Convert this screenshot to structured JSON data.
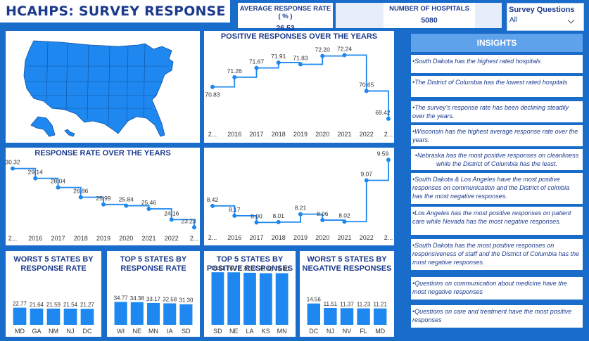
{
  "header": {
    "title": "HCAHPS: SURVEY RESPONSE",
    "kpi_response_rate": {
      "label": "AVERAGE RESPONSE RATE ( % )",
      "value": "26.53"
    },
    "kpi_hospitals": {
      "label": "NUMBER OF HOSPITALS",
      "value": "5080"
    },
    "slicer": {
      "label": "Survey Questions",
      "selected": "All"
    }
  },
  "colors": {
    "accent": "#1a6ccb",
    "bar": "#1e88f0",
    "title_text": "#1b3a8c"
  },
  "map": {
    "icon": "usa-map"
  },
  "insights": {
    "title": "INSIGHTS",
    "items": [
      "•South Dakota has the highest rated hospitals",
      "•The District of Columbia has the lowest rated hospitals",
      "•The survey's response rate has been declining steadily over the years.",
      "•Wisconsin has the highest average response rate over the years.",
      "•Nebraska has the most positive responses on cleanliness while the District of Columbia has the least.",
      "•South Dakota & Los Angeles have the most positive responses on communication and the District of colmbia has the most negative responses.",
      "•Los Angeles has the most positive responses on patient care while Nevada has the most negative responses.",
      "•South Dakota has the most positive responses on responsiveness of staff and the District of Columbia has the most negative responses.",
      "•Questions on communication about medicine have the most negative responses",
      "•Questions on care and treatment have the most positive responses"
    ]
  },
  "chart_data": [
    {
      "id": "positive",
      "type": "line",
      "title": "POSITIVE RESPONSES OVER THE YEARS",
      "categories": [
        "2...",
        "2016",
        "2017",
        "2018",
        "2019",
        "2020",
        "2021",
        "2022",
        "2..."
      ],
      "values": [
        70.83,
        71.26,
        71.67,
        71.91,
        71.83,
        72.2,
        72.24,
        70.65,
        69.42
      ],
      "labels": [
        "70.83",
        "71.26",
        "71.67",
        "71.91",
        "71.83",
        "72.20",
        "72.24",
        "70.65",
        "69.42"
      ],
      "ylim": [
        69.2,
        72.5
      ],
      "grid": false
    },
    {
      "id": "response",
      "type": "line",
      "title": "RESPONSE RATE OVER THE YEARS",
      "categories": [
        "2...",
        "2016",
        "2017",
        "2018",
        "2019",
        "2020",
        "2021",
        "2022",
        "2..."
      ],
      "values": [
        30.32,
        29.14,
        28.04,
        26.86,
        25.99,
        25.84,
        25.46,
        24.16,
        23.23
      ],
      "labels": [
        "30.32",
        "29.14",
        "28.04",
        "26.86",
        "25.99",
        "25.84",
        "25.46",
        "24.16",
        "23.23"
      ],
      "ylim": [
        22.5,
        30.8
      ],
      "grid": false
    },
    {
      "id": "negative",
      "type": "line",
      "title": "",
      "categories": [
        "2...",
        "2016",
        "2017",
        "2018",
        "2019",
        "2020",
        "2021",
        "2022",
        "2..."
      ],
      "values": [
        8.42,
        8.17,
        8.0,
        8.01,
        8.21,
        8.06,
        8.02,
        9.07,
        9.59
      ],
      "labels": [
        "8.42",
        "8.17",
        "8.00",
        "8.01",
        "8.21",
        "8.06",
        "8.02",
        "9.07",
        "9.59"
      ],
      "ylim": [
        7.9,
        9.65
      ],
      "grid": false
    },
    {
      "id": "worst_rr",
      "type": "bar",
      "title": "WORST 5 STATES BY RESPONSE RATE",
      "categories": [
        "MD",
        "GA",
        "NM",
        "NJ",
        "DC"
      ],
      "values": [
        22.77,
        21.64,
        21.59,
        21.54,
        21.27
      ],
      "labels": [
        "22.77",
        "21.64",
        "21.59",
        "21.54",
        "21.27"
      ],
      "ylim": [
        0,
        70
      ]
    },
    {
      "id": "top_rr",
      "type": "bar",
      "title": "TOP 5 STATES BY RESPONSE RATE",
      "categories": [
        "WI",
        "NE",
        "MN",
        "IA",
        "SD"
      ],
      "values": [
        34.77,
        34.38,
        33.17,
        32.58,
        31.3
      ],
      "labels": [
        "34.77",
        "34.38",
        "33.17",
        "32.58",
        "31.30"
      ],
      "ylim": [
        0,
        80
      ]
    },
    {
      "id": "top_pos",
      "type": "bar",
      "title": "TOP 5 STATES BY POSITIVE RESPONSES",
      "categories": [
        "SD",
        "NE",
        "LA",
        "KS",
        "MN"
      ],
      "values": [
        76.81,
        76.72,
        76.07,
        75.4,
        75.4
      ],
      "labels": [
        "76.81",
        "76.72",
        "76.07",
        "75.40",
        "75.40"
      ],
      "ylim": [
        0,
        77
      ]
    },
    {
      "id": "worst_neg",
      "type": "bar",
      "title": "WORST 5 STATES BY NEGATIVE RESPONSES",
      "categories": [
        "DC",
        "NJ",
        "NV",
        "FL",
        "MD"
      ],
      "values": [
        14.56,
        11.51,
        11.37,
        11.23,
        11.21
      ],
      "labels": [
        "14.56",
        "11.51",
        "11.37",
        "11.23",
        "11.21"
      ],
      "ylim": [
        0,
        36
      ]
    }
  ]
}
